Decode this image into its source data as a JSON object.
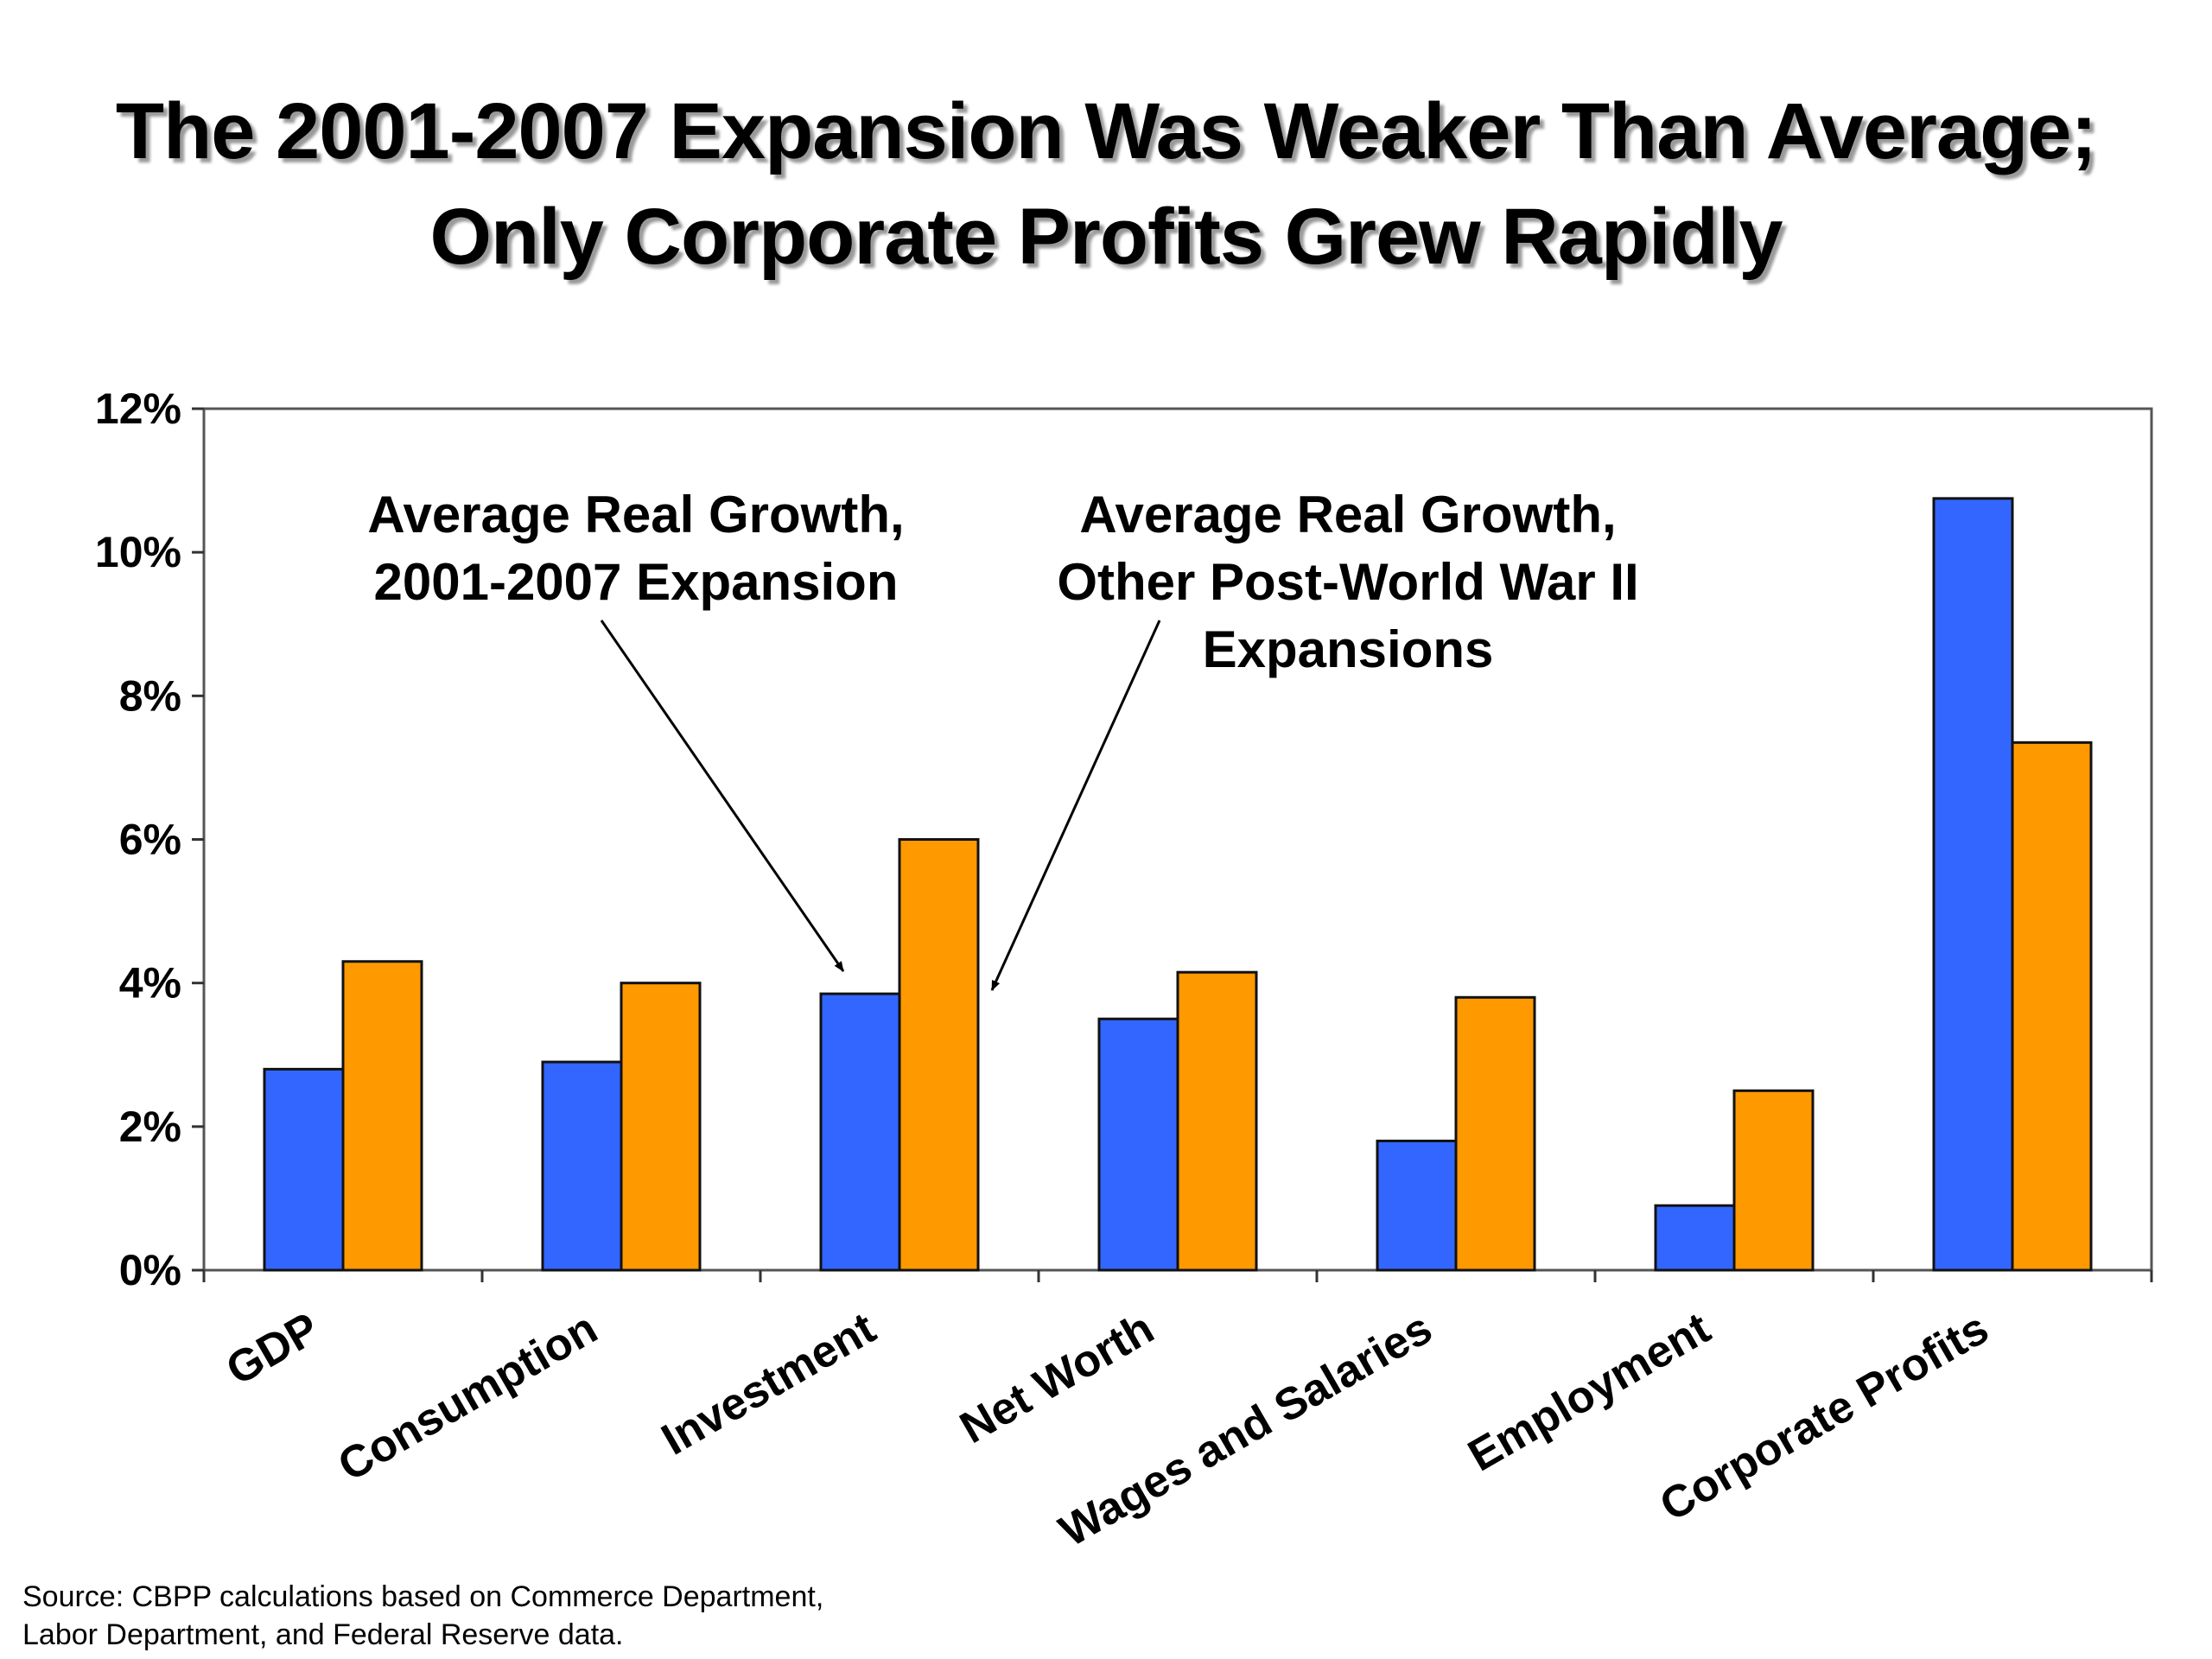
{
  "title_lines": [
    "The 2001-2007 Expansion Was Weaker Than Average;",
    "Only Corporate Profits Grew Rapidly"
  ],
  "source_lines": [
    "Source: CBPP calculations based on  Commerce Department,",
    "Labor Department, and Federal Reserve data."
  ],
  "colors": {
    "series_2001_2007": "#3366FF",
    "series_other": "#FF9900"
  },
  "chart_data": {
    "type": "bar",
    "categories": [
      "GDP",
      "Consumption",
      "Investment",
      "Net Worth",
      "Wages and Salaries",
      "Employment",
      "Corporate Profits"
    ],
    "series": [
      {
        "values": [
          2.8,
          2.9,
          3.85,
          3.5,
          1.8,
          0.9,
          10.75
        ]
      },
      {
        "values": [
          4.3,
          4.0,
          6.0,
          4.15,
          3.8,
          2.5,
          7.35
        ]
      }
    ],
    "yticks": [
      "0%",
      "2%",
      "4%",
      "6%",
      "8%",
      "10%",
      "12%"
    ],
    "ylim": [
      0,
      12
    ],
    "annotations": [
      {
        "lines": [
          "Average Real Growth,",
          "2001-2007 Expansion"
        ]
      },
      {
        "lines": [
          "Average Real Growth,",
          "Other Post-World War II",
          "Expansions"
        ]
      }
    ],
    "grid": false,
    "legend": "none"
  }
}
